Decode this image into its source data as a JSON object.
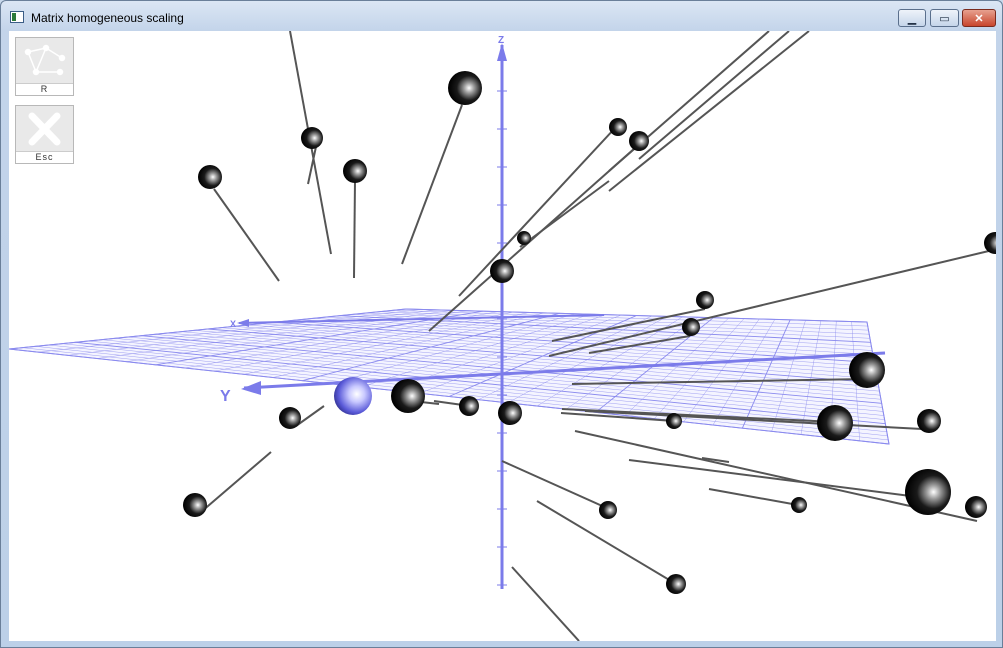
{
  "window": {
    "title": "Matrix homogeneous scaling"
  },
  "controls": {
    "minimize": "▁",
    "maximize": "▭",
    "close": "✕"
  },
  "toolbar": {
    "reset_label": "R",
    "escape_label": "Esc"
  },
  "axes": {
    "x_label": "X",
    "y_label": "Y",
    "z_label": "Z",
    "axis_color": "#7b7bea"
  },
  "colors": {
    "sphere": "#000000",
    "highlight_sphere": "#8a8aff",
    "grid": "#8a8aee"
  }
}
